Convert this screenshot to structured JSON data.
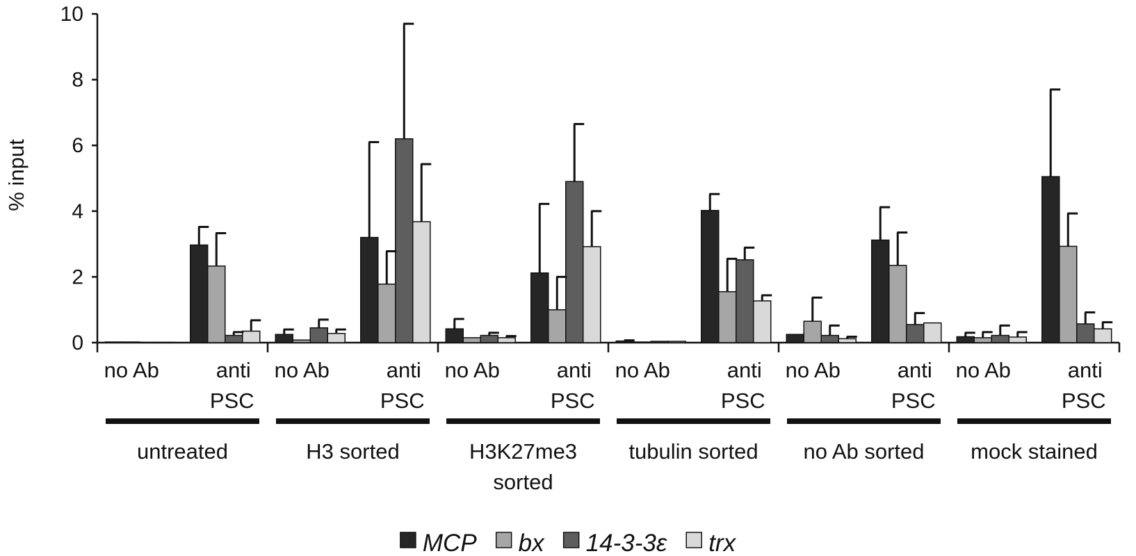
{
  "chart_data": {
    "type": "bar",
    "ylabel": "% input",
    "ylim": [
      0,
      10
    ],
    "y_ticks": [
      "0",
      "2",
      "4",
      "6",
      "8",
      "10"
    ],
    "grid": false,
    "legend_position": "bottom",
    "series": [
      {
        "name": "MCP",
        "color": "#262626",
        "values": [
          0.02,
          2.97,
          0.25,
          3.2,
          0.42,
          2.12,
          0.05,
          4.02,
          0.25,
          3.12,
          0.18,
          5.05
        ],
        "errors": [
          0.0,
          0.55,
          0.15,
          2.9,
          0.3,
          2.1,
          0.02,
          0.5,
          0.0,
          1.0,
          0.12,
          2.65
        ]
      },
      {
        "name": "bx",
        "color": "#a6a6a6",
        "values": [
          0.02,
          2.33,
          0.08,
          1.78,
          0.15,
          1.0,
          0.02,
          1.55,
          0.65,
          2.35,
          0.15,
          2.93
        ],
        "errors": [
          0.0,
          1.0,
          0.0,
          1.0,
          0.0,
          1.0,
          0.0,
          1.0,
          0.72,
          1.0,
          0.17,
          1.0
        ]
      },
      {
        "name": "14-3-3ε",
        "color": "#5e5e5e",
        "values": [
          0.01,
          0.22,
          0.45,
          6.2,
          0.22,
          4.9,
          0.04,
          2.52,
          0.22,
          0.55,
          0.22,
          0.57
        ],
        "errors": [
          0.0,
          0.1,
          0.25,
          3.5,
          0.08,
          1.75,
          0.0,
          0.37,
          0.3,
          0.35,
          0.3,
          0.35
        ]
      },
      {
        "name": "trx",
        "color": "#d9d9d9",
        "values": [
          0.01,
          0.35,
          0.28,
          3.68,
          0.15,
          2.92,
          0.04,
          1.27,
          0.12,
          0.6,
          0.17,
          0.42
        ],
        "errors": [
          0.0,
          0.33,
          0.12,
          1.75,
          0.05,
          1.08,
          0.0,
          0.17,
          0.06,
          0.0,
          0.15,
          0.2
        ]
      }
    ],
    "categories": [
      {
        "line1": "no Ab",
        "line2": ""
      },
      {
        "line1": "anti",
        "line2": "PSC"
      },
      {
        "line1": "no Ab",
        "line2": ""
      },
      {
        "line1": "anti",
        "line2": "PSC"
      },
      {
        "line1": "no Ab",
        "line2": ""
      },
      {
        "line1": "anti",
        "line2": "PSC"
      },
      {
        "line1": "no Ab",
        "line2": ""
      },
      {
        "line1": "anti",
        "line2": "PSC"
      },
      {
        "line1": "no Ab",
        "line2": ""
      },
      {
        "line1": "anti",
        "line2": "PSC"
      },
      {
        "line1": "no Ab",
        "line2": ""
      },
      {
        "line1": "anti",
        "line2": "PSC"
      }
    ],
    "groups": [
      {
        "line1": "untreated",
        "line2": ""
      },
      {
        "line1": "H3 sorted",
        "line2": ""
      },
      {
        "line1": "H3K27me3",
        "line2": "sorted"
      },
      {
        "line1": "tubulin sorted",
        "line2": ""
      },
      {
        "line1": "no Ab sorted",
        "line2": ""
      },
      {
        "line1": "mock stained",
        "line2": ""
      }
    ]
  }
}
